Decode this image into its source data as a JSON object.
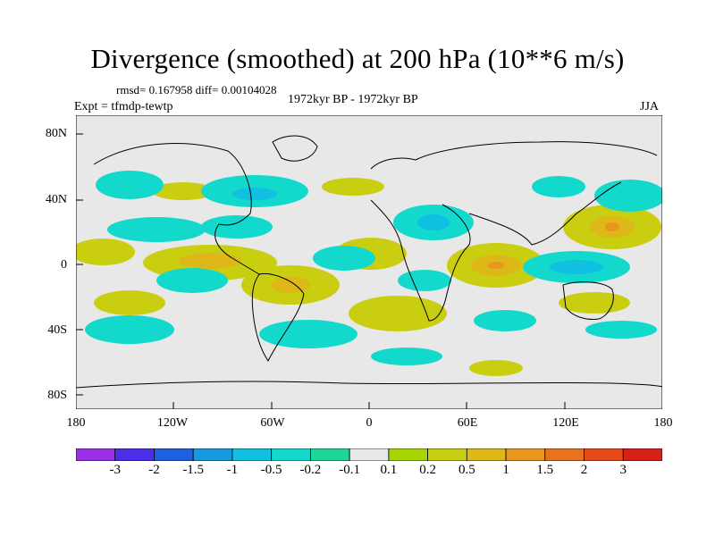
{
  "title": "Divergence (smoothed) at 200 hPa (10**6 m/s)",
  "stats": "rmsd= 0.167958 diff= 0.00104028",
  "experiment": "Expt = tfmdp-tewtp",
  "period": "1972kyr BP - 1972kyr BP",
  "season": "JJA",
  "y_ticks": [
    "80N",
    "40N",
    "0",
    "40S",
    "80S"
  ],
  "x_ticks": [
    "180",
    "120W",
    "60W",
    "0",
    "60E",
    "120E",
    "180"
  ],
  "colorbar": {
    "labels": [
      "-3",
      "-2",
      "-1.5",
      "-1",
      "-0.5",
      "-0.2",
      "-0.1",
      "0.1",
      "0.2",
      "0.5",
      "1",
      "1.5",
      "2",
      "3"
    ],
    "colors": [
      "#9b30e8",
      "#4a2ee8",
      "#1f5fe0",
      "#159ae0",
      "#10c0e0",
      "#13d9cc",
      "#1ed69a",
      "#e8e8e8",
      "#a6d400",
      "#c9ce10",
      "#ddb818",
      "#e8961e",
      "#e8721e",
      "#e84a1e",
      "#d8201a"
    ]
  },
  "chart_data": {
    "type": "heatmap",
    "title": "Divergence (smoothed) at 200 hPa (10**6 m/s)",
    "variable": "divergence at 200 hPa",
    "units": "10**6 m/s",
    "x_range": [
      -180,
      180
    ],
    "y_range": [
      -90,
      90
    ],
    "levels": [
      -3,
      -2,
      -1.5,
      -1,
      -0.5,
      -0.2,
      -0.1,
      0.1,
      0.2,
      0.5,
      1,
      1.5,
      2,
      3
    ]
  }
}
